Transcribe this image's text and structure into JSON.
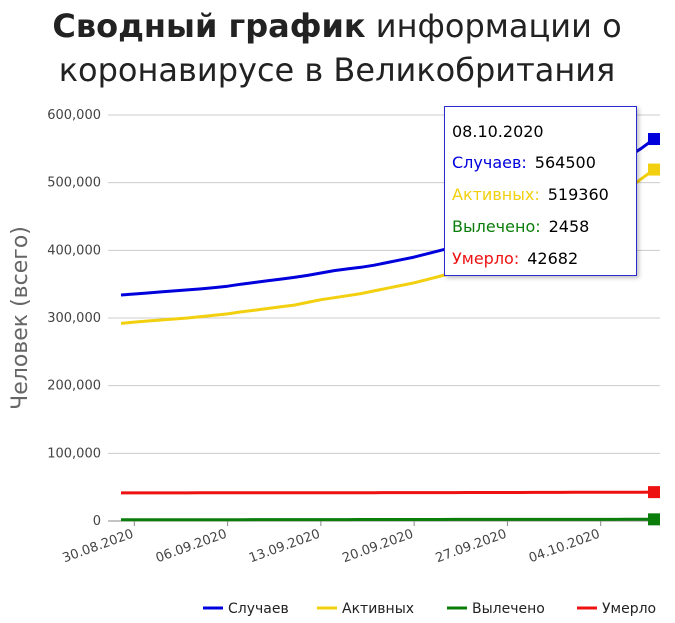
{
  "title": {
    "bold": "Сводный график",
    "line1_rest": "информации о",
    "line2": "коронавирусе в Великобритания"
  },
  "colors": {
    "cases": "#0000dd",
    "active": "#f2d00f",
    "recovered": "#0a7d0a",
    "deaths": "#ee1111",
    "grid": "#cccccc"
  },
  "tooltip": {
    "date": "08.10.2020",
    "rows": [
      {
        "label": "Случаев:",
        "value": "564500",
        "color": "#0000dd"
      },
      {
        "label": "Активных:",
        "value": "519360",
        "color": "#f2d00f"
      },
      {
        "label": "Вылечено:",
        "value": "2458",
        "color": "#0a7d0a"
      },
      {
        "label": "Умерло:",
        "value": "42682",
        "color": "#ee1111"
      }
    ]
  },
  "chart_data": {
    "type": "line",
    "ylabel": "Человек (всего)",
    "ylim": [
      0,
      600000
    ],
    "yticks": [
      0,
      100000,
      200000,
      300000,
      400000,
      500000,
      600000
    ],
    "ytick_labels": [
      "0",
      "100,000",
      "200,000",
      "300,000",
      "400,000",
      "500,000",
      "600,000"
    ],
    "xtick_labels": [
      "30.08.2020",
      "06.09.2020",
      "13.09.2020",
      "20.09.2020",
      "27.09.2020",
      "04.10.2020"
    ],
    "x": [
      "29.08.2020",
      "30.08.2020",
      "31.08.2020",
      "01.09.2020",
      "02.09.2020",
      "03.09.2020",
      "04.09.2020",
      "05.09.2020",
      "06.09.2020",
      "07.09.2020",
      "08.09.2020",
      "09.09.2020",
      "10.09.2020",
      "11.09.2020",
      "12.09.2020",
      "13.09.2020",
      "14.09.2020",
      "15.09.2020",
      "16.09.2020",
      "17.09.2020",
      "18.09.2020",
      "19.09.2020",
      "20.09.2020",
      "21.09.2020",
      "22.09.2020",
      "23.09.2020",
      "24.09.2020",
      "25.09.2020",
      "26.09.2020",
      "27.09.2020",
      "28.09.2020",
      "29.09.2020",
      "30.09.2020",
      "01.10.2020",
      "02.10.2020",
      "03.10.2020",
      "04.10.2020",
      "05.10.2020",
      "06.10.2020",
      "07.10.2020",
      "08.10.2020"
    ],
    "series": [
      {
        "name": "Случаев",
        "color": "#0000dd",
        "values": [
          334000,
          335500,
          337000,
          338500,
          340000,
          341500,
          343000,
          345000,
          347000,
          350000,
          352500,
          355000,
          357500,
          360000,
          363000,
          366500,
          370000,
          372500,
          375000,
          378000,
          382000,
          386000,
          390000,
          395000,
          400000,
          405000,
          411000,
          417000,
          423000,
          430000,
          437000,
          445000,
          455000,
          467000,
          480000,
          494000,
          510000,
          525000,
          538000,
          550000,
          564500
        ]
      },
      {
        "name": "Активных",
        "color": "#f2d00f",
        "values": [
          292000,
          294000,
          295500,
          297000,
          298500,
          300000,
          302000,
          304000,
          306000,
          309000,
          311500,
          314000,
          316500,
          319000,
          323000,
          327000,
          330000,
          333000,
          336000,
          340000,
          344000,
          348000,
          352000,
          357000,
          362000,
          367000,
          372000,
          378000,
          384000,
          391000,
          398000,
          406000,
          414000,
          424000,
          435000,
          448000,
          462000,
          476000,
          490000,
          505000,
          519360
        ]
      },
      {
        "name": "Вылечено",
        "color": "#0a7d0a",
        "values": [
          1800,
          1820,
          1840,
          1860,
          1880,
          1900,
          1920,
          1940,
          1960,
          1980,
          2000,
          2020,
          2040,
          2060,
          2080,
          2100,
          2120,
          2140,
          2160,
          2180,
          2200,
          2220,
          2240,
          2260,
          2280,
          2300,
          2320,
          2340,
          2355,
          2370,
          2385,
          2395,
          2405,
          2415,
          2420,
          2425,
          2430,
          2435,
          2442,
          2450,
          2458
        ]
      },
      {
        "name": "Умерло",
        "color": "#ee1111",
        "values": [
          41500,
          41520,
          41540,
          41560,
          41580,
          41600,
          41620,
          41640,
          41660,
          41680,
          41700,
          41720,
          41740,
          41760,
          41780,
          41800,
          41820,
          41840,
          41860,
          41880,
          41900,
          41920,
          41940,
          41960,
          41990,
          42020,
          42050,
          42080,
          42110,
          42140,
          42180,
          42220,
          42260,
          42300,
          42350,
          42400,
          42450,
          42500,
          42560,
          42620,
          42682
        ]
      }
    ]
  }
}
